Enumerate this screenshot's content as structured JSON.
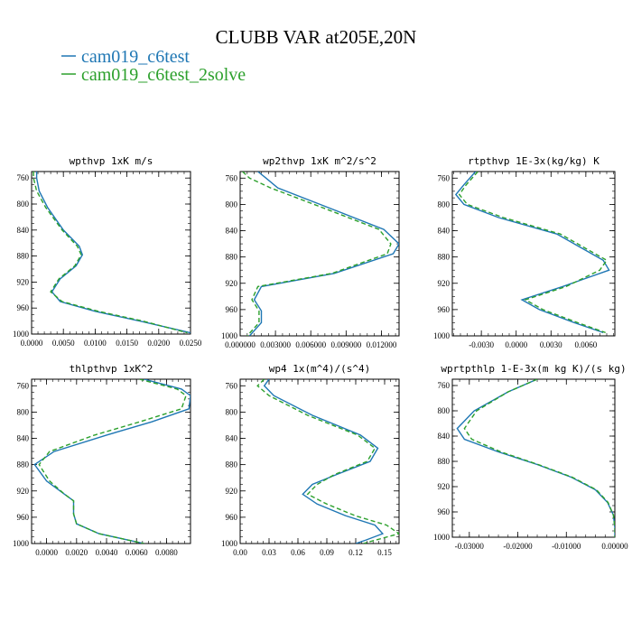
{
  "title": "CLUBB VAR at205E,20N",
  "legend": [
    {
      "label": "cam019_c6test",
      "color": "#1f77b4"
    },
    {
      "label": "cam019_c6test_2solve",
      "color": "#2ca02c"
    }
  ],
  "chart_data": [
    {
      "type": "line",
      "title": "wpthvp   1xK m/s",
      "xlim": [
        0.0,
        0.025
      ],
      "xticks": [
        "0.0000",
        "0.0050",
        "0.0100",
        "0.0150",
        "0.0200",
        "0.0250"
      ],
      "xtick_values": [
        0.0,
        0.005,
        0.01,
        0.015,
        0.02,
        0.025
      ],
      "ylim": [
        1000,
        750
      ],
      "yticks": [
        "760",
        "800",
        "840",
        "880",
        "920",
        "960",
        "1000"
      ],
      "ytick_values": [
        760,
        800,
        840,
        880,
        920,
        960,
        1000
      ],
      "series": [
        {
          "name": "cam019_c6test",
          "points": [
            [
              0.0008,
              750
            ],
            [
              0.0008,
              760
            ],
            [
              0.0012,
              780
            ],
            [
              0.0025,
              805
            ],
            [
              0.005,
              840
            ],
            [
              0.0075,
              865
            ],
            [
              0.008,
              878
            ],
            [
              0.007,
              895
            ],
            [
              0.0045,
              915
            ],
            [
              0.0032,
              935
            ],
            [
              0.0045,
              950
            ],
            [
              0.01,
              965
            ],
            [
              0.017,
              980
            ],
            [
              0.025,
              998
            ]
          ]
        },
        {
          "name": "cam019_c6test_2solve",
          "points": [
            [
              0.0003,
              750
            ],
            [
              0.0003,
              760
            ],
            [
              0.0008,
              780
            ],
            [
              0.0022,
              805
            ],
            [
              0.0048,
              840
            ],
            [
              0.0072,
              865
            ],
            [
              0.0078,
              878
            ],
            [
              0.0068,
              895
            ],
            [
              0.0043,
              915
            ],
            [
              0.003,
              935
            ],
            [
              0.0048,
              950
            ],
            [
              0.0105,
              965
            ],
            [
              0.0175,
              980
            ],
            [
              0.0245,
              998
            ]
          ]
        }
      ]
    },
    {
      "type": "line",
      "title": "wp2thvp   1xK m^2/s^2",
      "xlim": [
        0.0,
        0.0135
      ],
      "xticks": [
        "0.000000",
        "0.003000",
        "0.006000",
        "0.009000",
        "0.012000"
      ],
      "xtick_values": [
        0.0,
        0.003,
        0.006,
        0.009,
        0.012
      ],
      "ylim": [
        1000,
        750
      ],
      "yticks": [
        "760",
        "800",
        "840",
        "880",
        "920",
        "960",
        "1000"
      ],
      "ytick_values": [
        760,
        800,
        840,
        880,
        920,
        960,
        1000
      ],
      "series": [
        {
          "name": "cam019_c6test",
          "points": [
            [
              0.0015,
              750
            ],
            [
              0.0022,
              760
            ],
            [
              0.0032,
              775
            ],
            [
              0.0075,
              805
            ],
            [
              0.0122,
              838
            ],
            [
              0.0135,
              860
            ],
            [
              0.013,
              875
            ],
            [
              0.008,
              905
            ],
            [
              0.0018,
              925
            ],
            [
              0.0012,
              945
            ],
            [
              0.0018,
              962
            ],
            [
              0.0018,
              980
            ],
            [
              0.0008,
              1000
            ]
          ]
        },
        {
          "name": "cam019_c6test_2solve",
          "points": [
            [
              0.0002,
              750
            ],
            [
              0.0008,
              760
            ],
            [
              0.0026,
              775
            ],
            [
              0.007,
              805
            ],
            [
              0.0118,
              838
            ],
            [
              0.0128,
              860
            ],
            [
              0.0125,
              875
            ],
            [
              0.0078,
              905
            ],
            [
              0.0015,
              925
            ],
            [
              0.001,
              945
            ],
            [
              0.0016,
              962
            ],
            [
              0.0016,
              980
            ],
            [
              0.0006,
              1000
            ]
          ]
        }
      ]
    },
    {
      "type": "line",
      "title": "rtpthvp   1E-3x(kg/kg) K",
      "xlim": [
        -0.0055,
        0.0085
      ],
      "xticks": [
        "-0.0030",
        "0.0000",
        "0.0030",
        "0.0060"
      ],
      "xtick_values": [
        -0.003,
        0.0,
        0.003,
        0.006
      ],
      "ylim": [
        1000,
        750
      ],
      "yticks": [
        "760",
        "800",
        "840",
        "880",
        "920",
        "960",
        "1000"
      ],
      "ytick_values": [
        760,
        800,
        840,
        880,
        920,
        960,
        1000
      ],
      "series": [
        {
          "name": "cam019_c6test",
          "points": [
            [
              -0.0035,
              750
            ],
            [
              -0.0045,
              770
            ],
            [
              -0.0052,
              785
            ],
            [
              -0.0045,
              800
            ],
            [
              -0.0015,
              820
            ],
            [
              0.0035,
              845
            ],
            [
              0.006,
              870
            ],
            [
              0.0075,
              885
            ],
            [
              0.008,
              900
            ],
            [
              0.004,
              925
            ],
            [
              0.0005,
              945
            ],
            [
              0.002,
              960
            ],
            [
              0.005,
              980
            ],
            [
              0.0075,
              995
            ]
          ]
        },
        {
          "name": "cam019_c6test_2solve",
          "points": [
            [
              -0.0033,
              750
            ],
            [
              -0.0043,
              770
            ],
            [
              -0.0049,
              785
            ],
            [
              -0.0042,
              800
            ],
            [
              -0.0011,
              820
            ],
            [
              0.0038,
              845
            ],
            [
              0.0063,
              870
            ],
            [
              0.0078,
              885
            ],
            [
              0.0072,
              900
            ],
            [
              0.0043,
              925
            ],
            [
              0.0008,
              945
            ],
            [
              0.0023,
              960
            ],
            [
              0.0053,
              980
            ],
            [
              0.0077,
              995
            ]
          ]
        }
      ]
    },
    {
      "type": "line",
      "title": "thlpthvp   1xK^2",
      "xlim": [
        -0.001,
        0.0096
      ],
      "xticks": [
        "0.0000",
        "0.0020",
        "0.0040",
        "0.0060",
        "0.0080"
      ],
      "xtick_values": [
        0.0,
        0.002,
        0.004,
        0.006,
        0.008
      ],
      "ylim": [
        1000,
        750
      ],
      "yticks": [
        "760",
        "800",
        "840",
        "880",
        "920",
        "960",
        "1000"
      ],
      "ytick_values": [
        760,
        800,
        840,
        880,
        920,
        960,
        1000
      ],
      "series": [
        {
          "name": "cam019_c6test",
          "points": [
            [
              0.0065,
              750
            ],
            [
              0.009,
              765
            ],
            [
              0.0096,
              775
            ],
            [
              0.0095,
              795
            ],
            [
              0.007,
              815
            ],
            [
              0.004,
              835
            ],
            [
              0.0005,
              860
            ],
            [
              -0.0008,
              880
            ],
            [
              0.0,
              905
            ],
            [
              0.0012,
              925
            ],
            [
              0.0018,
              935
            ],
            [
              0.0018,
              955
            ],
            [
              0.002,
              970
            ],
            [
              0.0035,
              985
            ],
            [
              0.0065,
              1000
            ]
          ]
        },
        {
          "name": "cam019_c6test_2solve",
          "points": [
            [
              0.0062,
              750
            ],
            [
              0.0087,
              765
            ],
            [
              0.0093,
              775
            ],
            [
              0.009,
              795
            ],
            [
              0.0062,
              815
            ],
            [
              0.0032,
              835
            ],
            [
              0.0002,
              860
            ],
            [
              -0.0005,
              880
            ],
            [
              0.0002,
              905
            ],
            [
              0.0012,
              925
            ],
            [
              0.0018,
              935
            ],
            [
              0.0018,
              955
            ],
            [
              0.002,
              970
            ],
            [
              0.0035,
              985
            ],
            [
              0.0065,
              1000
            ]
          ]
        }
      ]
    },
    {
      "type": "line",
      "title": "wp4   1x(m^4)/(s^4)",
      "xlim": [
        0.0,
        0.165
      ],
      "xticks": [
        "0.00",
        "0.03",
        "0.06",
        "0.09",
        "0.12",
        "0.15"
      ],
      "xtick_values": [
        0.0,
        0.03,
        0.06,
        0.09,
        0.12,
        0.15
      ],
      "ylim": [
        1000,
        750
      ],
      "yticks": [
        "760",
        "800",
        "840",
        "880",
        "920",
        "960",
        "1000"
      ],
      "ytick_values": [
        760,
        800,
        840,
        880,
        920,
        960,
        1000
      ],
      "series": [
        {
          "name": "cam019_c6test",
          "points": [
            [
              0.03,
              750
            ],
            [
              0.025,
              760
            ],
            [
              0.035,
              775
            ],
            [
              0.075,
              805
            ],
            [
              0.125,
              835
            ],
            [
              0.143,
              855
            ],
            [
              0.135,
              875
            ],
            [
              0.1,
              895
            ],
            [
              0.075,
              910
            ],
            [
              0.065,
              925
            ],
            [
              0.08,
              940
            ],
            [
              0.11,
              958
            ],
            [
              0.14,
              972
            ],
            [
              0.148,
              985
            ],
            [
              0.13,
              995
            ],
            [
              0.12,
              1000
            ]
          ]
        },
        {
          "name": "cam019_c6test_2solve",
          "points": [
            [
              0.025,
              750
            ],
            [
              0.018,
              760
            ],
            [
              0.03,
              775
            ],
            [
              0.07,
              805
            ],
            [
              0.122,
              835
            ],
            [
              0.14,
              855
            ],
            [
              0.132,
              875
            ],
            [
              0.098,
              895
            ],
            [
              0.08,
              910
            ],
            [
              0.07,
              925
            ],
            [
              0.09,
              940
            ],
            [
              0.12,
              958
            ],
            [
              0.152,
              972
            ],
            [
              0.165,
              985
            ],
            [
              0.14,
              995
            ],
            [
              0.128,
              1000
            ]
          ]
        }
      ]
    },
    {
      "type": "line",
      "title": "wprtpthlp   1-E-3x(m kg K)/(s kg)",
      "xlim": [
        -0.0335,
        0.0
      ],
      "xticks": [
        "-0.03000",
        "-0.02000",
        "-0.01000",
        "0.00000"
      ],
      "xtick_values": [
        -0.03,
        -0.02,
        -0.01,
        0.0
      ],
      "ylim": [
        1000,
        750
      ],
      "yticks": [
        "760",
        "800",
        "840",
        "880",
        "920",
        "960",
        "1000"
      ],
      "ytick_values": [
        760,
        800,
        840,
        880,
        920,
        960,
        1000
      ],
      "series": [
        {
          "name": "cam019_c6test",
          "points": [
            [
              -0.016,
              750
            ],
            [
              -0.022,
              770
            ],
            [
              -0.029,
              800
            ],
            [
              -0.0325,
              828
            ],
            [
              -0.031,
              845
            ],
            [
              -0.024,
              865
            ],
            [
              -0.016,
              885
            ],
            [
              -0.009,
              905
            ],
            [
              -0.004,
              925
            ],
            [
              -0.0015,
              945
            ],
            [
              -0.0003,
              965
            ],
            [
              0.0,
              985
            ],
            [
              0.0,
              1000
            ]
          ]
        },
        {
          "name": "cam019_c6test_2solve",
          "points": [
            [
              -0.016,
              750
            ],
            [
              -0.022,
              770
            ],
            [
              -0.0285,
              800
            ],
            [
              -0.031,
              828
            ],
            [
              -0.0295,
              845
            ],
            [
              -0.0235,
              865
            ],
            [
              -0.0158,
              885
            ],
            [
              -0.0088,
              905
            ],
            [
              -0.0038,
              925
            ],
            [
              -0.0014,
              945
            ],
            [
              -0.0003,
              965
            ],
            [
              0.0,
              985
            ],
            [
              0.0,
              1000
            ]
          ]
        }
      ]
    }
  ]
}
